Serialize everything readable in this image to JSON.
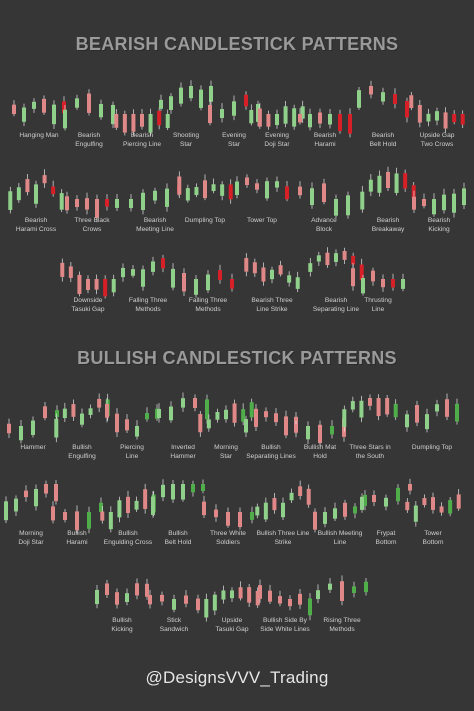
{
  "bearish": {
    "title": "BEARISH CANDLESTICK PATTERNS",
    "rows": [
      [
        "Hanging Man",
        "Bearish\nEngulfing",
        "Bearish\nPiercing Line",
        "Shooting\nStar",
        "Evening\nStar",
        "Evening\nDoji Star",
        "Bearish\nHarami",
        "Bearish\nBelt Hold",
        "Upside Gap\nTwo Crows"
      ],
      [
        "Bearish\nHarami Cross",
        "Three Black\nCrows",
        "Bearish\nMeeting Line",
        "Dumpling Top",
        "Tower Top",
        "Advance\nBlock",
        "Bearish\nBreakaway",
        "Bearish\nKicking"
      ],
      [
        "Downside\nTasuki Gap",
        "Falling Three\nMethods",
        "Falling Three\nMethods",
        "Bearish Three\nLine Strike",
        "Bearish\nSeparating Line",
        "Thrusting\nLine"
      ]
    ]
  },
  "bullish": {
    "title": "BULLISH CANDLESTICK PATTERNS",
    "rows": [
      [
        "Hammer",
        "Bullish\nEngulfing",
        "Piercing\nLine",
        "Inverted\nHammer",
        "Morning\nStar",
        "Bullish\nSeparating Lines",
        "Bullish Mat\nHold",
        "Three Stars in\nthe South",
        "Dumpling Top"
      ],
      [
        "Morning\nDoji Star",
        "Bullish\nHarami",
        "Bullish\nEngulding Cross",
        "Bullish\nBelt Hold",
        "Three White\nSoldiers",
        "Bullish Three Line\nStrike",
        "Bullish Meeting\nLine",
        "Frypat\nBottom",
        "Tower\nBottom"
      ],
      [
        "Bullish\nKicking",
        "Stick\nSandwich",
        "Upside\nTasuki Gap",
        "Bullish Side By\nSide White Lines",
        "Rising Three\nMethods"
      ]
    ]
  },
  "credit": "@DesignsVVV_Trading",
  "colors": {
    "background": "#363636",
    "bull": "#8fd08a",
    "bull_dark": "#4fae4a",
    "bear": "#e08787",
    "bear_dark": "#d61f27",
    "title": "#9a9a9a"
  }
}
